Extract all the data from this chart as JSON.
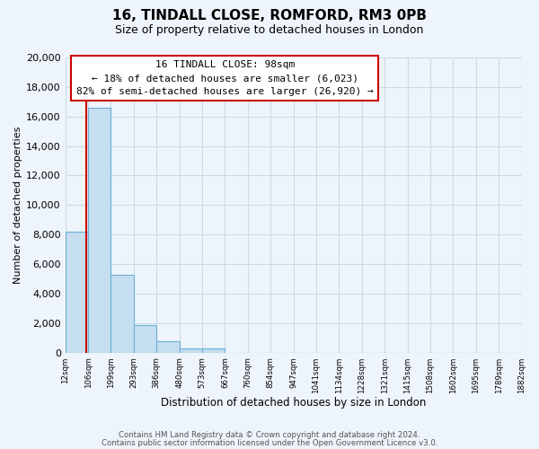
{
  "title": "16, TINDALL CLOSE, ROMFORD, RM3 0PB",
  "subtitle": "Size of property relative to detached houses in London",
  "xlabel": "Distribution of detached houses by size in London",
  "ylabel": "Number of detached properties",
  "bar_values": [
    8200,
    16600,
    5300,
    1850,
    750,
    270,
    270,
    0,
    0,
    0,
    0,
    0,
    0,
    0,
    0,
    0,
    0,
    0,
    0,
    0
  ],
  "bar_labels": [
    "12sqm",
    "106sqm",
    "199sqm",
    "293sqm",
    "386sqm",
    "480sqm",
    "573sqm",
    "667sqm",
    "760sqm",
    "854sqm",
    "947sqm",
    "1041sqm",
    "1134sqm",
    "1228sqm",
    "1321sqm",
    "1415sqm",
    "1508sqm",
    "1602sqm",
    "1695sqm",
    "1789sqm",
    "1882sqm"
  ],
  "bar_color": "#c5dff0",
  "bar_edge_color": "#6baed6",
  "annotation_line_color": "#cc0000",
  "annotation_box_text": "16 TINDALL CLOSE: 98sqm\n← 18% of detached houses are smaller (6,023)\n82% of semi-detached houses are larger (26,920) →",
  "ylim": [
    0,
    20000
  ],
  "yticks": [
    0,
    2000,
    4000,
    6000,
    8000,
    10000,
    12000,
    14000,
    16000,
    18000,
    20000
  ],
  "footer_line1": "Contains HM Land Registry data © Crown copyright and database right 2024.",
  "footer_line2": "Contains public sector information licensed under the Open Government Licence v3.0.",
  "grid_color": "#c8dce8",
  "background_color": "#eef4fb"
}
